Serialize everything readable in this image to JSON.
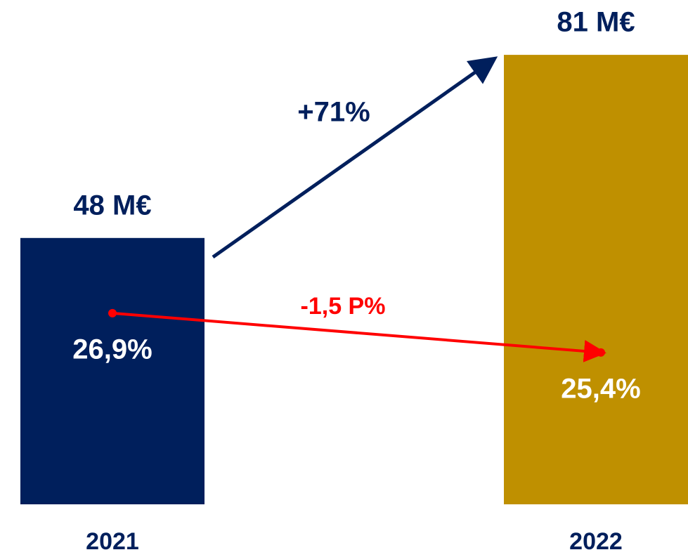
{
  "chart_data": {
    "type": "bar",
    "categories": [
      "2021",
      "2022"
    ],
    "values": [
      48,
      81
    ],
    "value_labels": [
      "48 M€",
      "81 M€"
    ],
    "colors": [
      "#001f5c",
      "#bf9000"
    ],
    "line": {
      "values": [
        26.9,
        25.4
      ],
      "value_labels": [
        "26,9%",
        "25,4%"
      ],
      "color": "#ff0000"
    },
    "annotations": [
      "+71%",
      "-1,5 P%"
    ],
    "arrow_color": "#001f5c"
  }
}
